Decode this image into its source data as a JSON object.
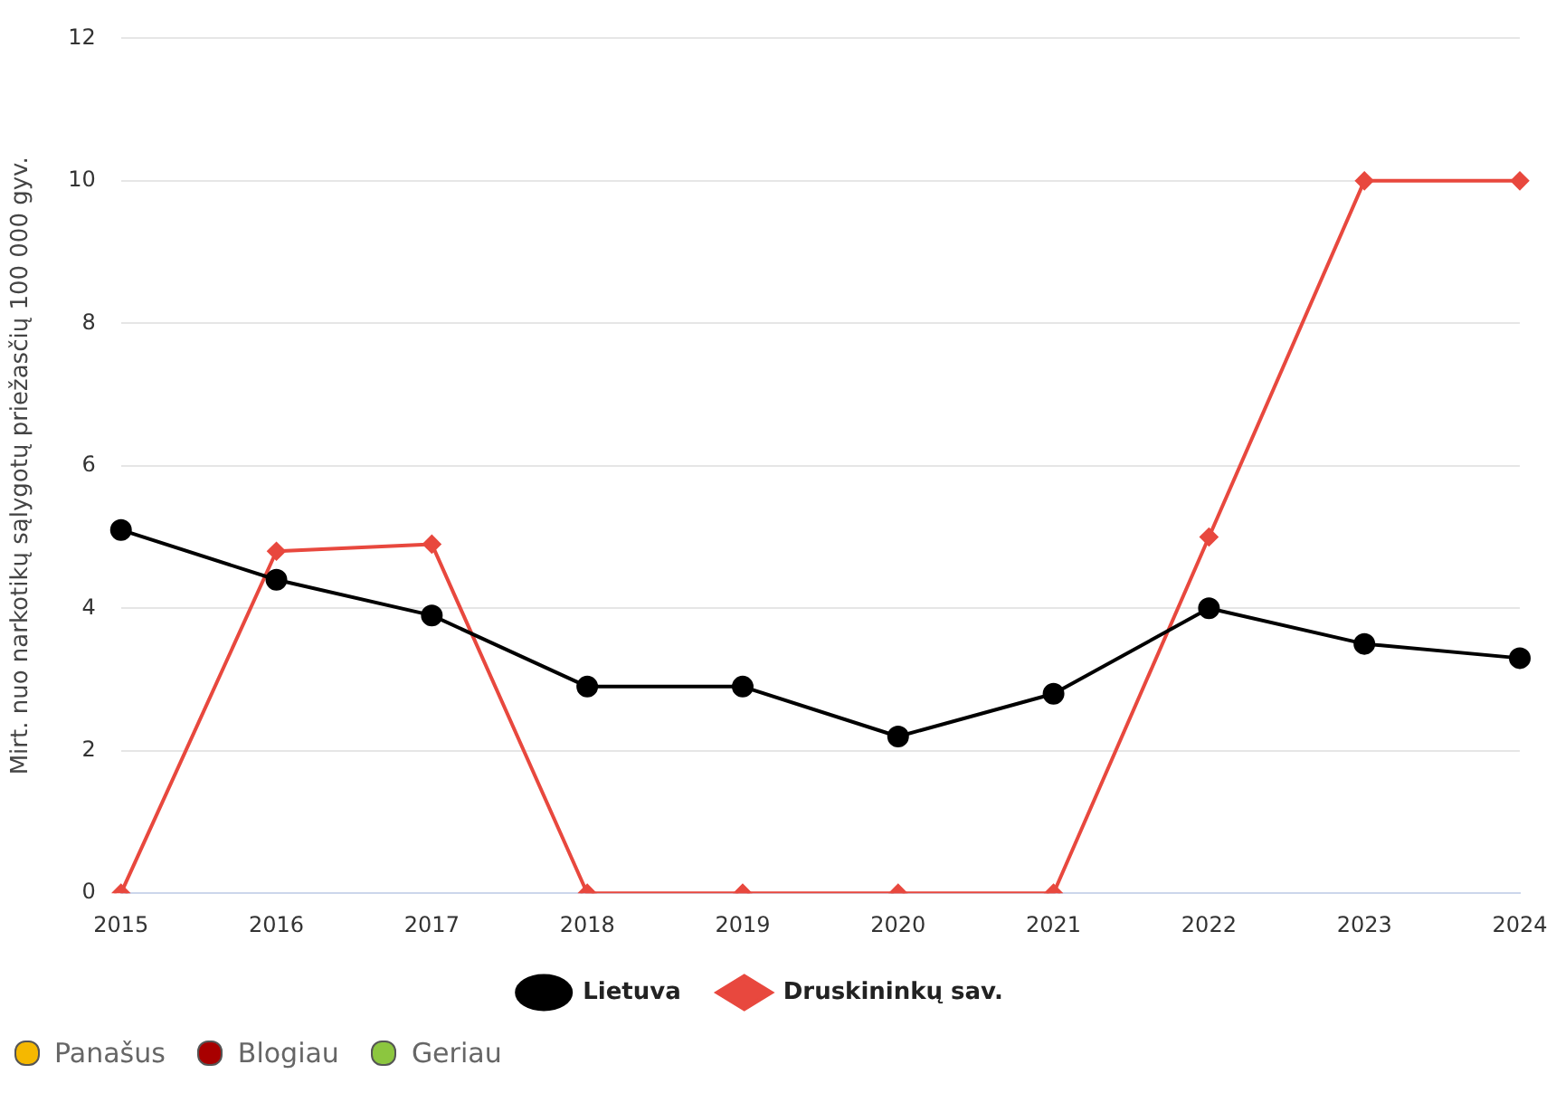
{
  "chart_data": {
    "type": "line",
    "ylabel": "Mirt. nuo narkotikų sąlygotų priežasčių 100 000 gyv.",
    "categories": [
      "2015",
      "2016",
      "2017",
      "2018",
      "2019",
      "2020",
      "2021",
      "2022",
      "2023",
      "2024"
    ],
    "series": [
      {
        "name": "Lietuva",
        "color": "#000000",
        "marker": "circle",
        "values": [
          5.1,
          4.4,
          3.9,
          2.9,
          2.9,
          2.2,
          2.8,
          4.0,
          3.5,
          3.3
        ]
      },
      {
        "name": "Druskininkų sav.",
        "color": "#e8483e",
        "marker": "diamond",
        "values": [
          0,
          4.8,
          4.9,
          0,
          0,
          0,
          0,
          5.0,
          10,
          10
        ]
      }
    ],
    "ylim": [
      0,
      12
    ],
    "yticks": [
      0,
      2,
      4,
      6,
      8,
      10,
      12
    ],
    "grid": "y",
    "legend": "bottom",
    "line_style": "solid",
    "annotations": [
      "Panašus",
      "Blogiau",
      "Geriau"
    ]
  }
}
